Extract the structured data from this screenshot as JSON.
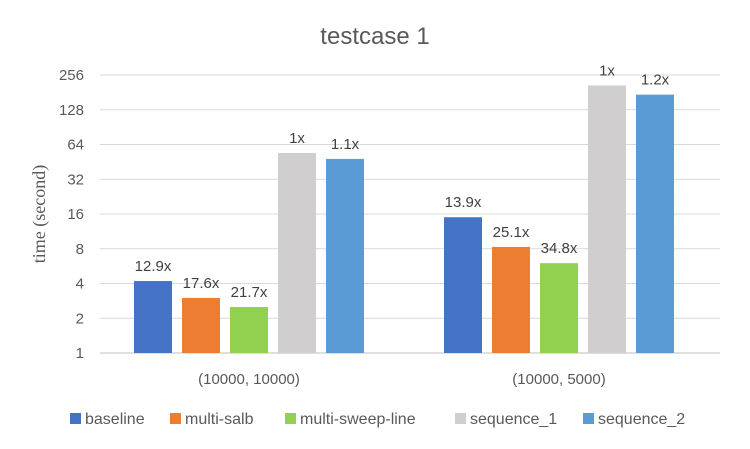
{
  "chart_data": {
    "type": "bar",
    "title": "testcase 1",
    "xlabel": "",
    "ylabel": "time (second)",
    "y_scale": "log2",
    "ylim": [
      1,
      256
    ],
    "y_ticks": [
      1,
      2,
      4,
      8,
      16,
      32,
      64,
      128,
      256
    ],
    "y_tick_labels": [
      "1",
      "2",
      "4",
      "8",
      "16",
      "32",
      "64",
      "128",
      "256"
    ],
    "grid": true,
    "legend_position": "bottom",
    "categories": [
      "(10000, 10000)",
      "(10000, 5000)"
    ],
    "series": [
      {
        "name": "baseline",
        "color": "#4472C4",
        "values": [
          4.2,
          15.0
        ],
        "labels": [
          "12.9x",
          "13.9x"
        ]
      },
      {
        "name": "multi-salb",
        "color": "#ED7D31",
        "values": [
          3.0,
          8.3
        ],
        "labels": [
          "17.6x",
          "25.1x"
        ]
      },
      {
        "name": "multi-sweep-line",
        "color": "#92D050",
        "values": [
          2.5,
          6.0
        ],
        "labels": [
          "21.7x",
          "34.8x"
        ]
      },
      {
        "name": "sequence_1",
        "color": "#D0CECE",
        "values": [
          54,
          208
        ],
        "labels": [
          "1x",
          "1x"
        ]
      },
      {
        "name": "sequence_2",
        "color": "#5B9BD5",
        "values": [
          48,
          173
        ],
        "labels": [
          "1.1x",
          "1.2x"
        ]
      }
    ]
  }
}
